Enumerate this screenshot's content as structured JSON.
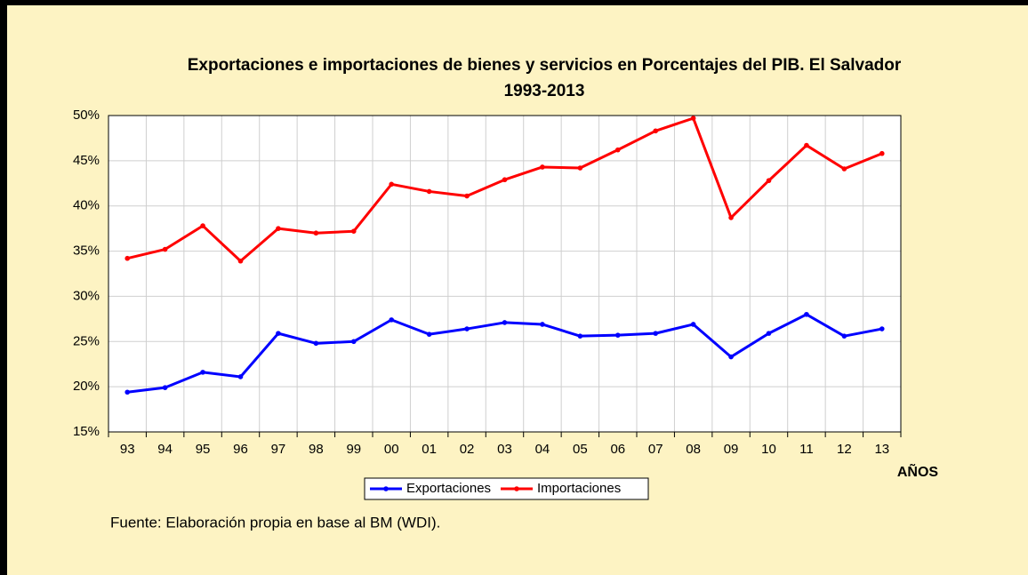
{
  "chart_data": {
    "type": "line",
    "title": [
      "Exportaciones e importaciones de bienes y servicios en Porcentajes del PIB. El Salvador",
      "1993-2013"
    ],
    "x_label": "AÑOS",
    "source": "Fuente: Elaboración propia en base al BM (WDI).",
    "categories": [
      "93",
      "94",
      "95",
      "96",
      "97",
      "98",
      "99",
      "00",
      "01",
      "02",
      "03",
      "04",
      "05",
      "06",
      "07",
      "08",
      "09",
      "10",
      "11",
      "12",
      "13"
    ],
    "series": [
      {
        "name": "Exportaciones",
        "color": "#0000ff",
        "values": [
          19.4,
          19.9,
          21.6,
          21.1,
          25.9,
          24.8,
          25.0,
          27.4,
          25.8,
          26.4,
          27.1,
          26.9,
          25.6,
          25.7,
          25.9,
          26.9,
          23.3,
          25.9,
          28.0,
          25.6,
          26.4
        ]
      },
      {
        "name": "Importaciones",
        "color": "#ff0000",
        "values": [
          34.2,
          35.2,
          37.8,
          33.9,
          37.5,
          37.0,
          37.2,
          42.4,
          41.6,
          41.1,
          42.9,
          44.3,
          44.2,
          46.2,
          48.3,
          49.7,
          38.7,
          42.8,
          46.7,
          44.1,
          45.8
        ]
      }
    ],
    "ylim": [
      15,
      50
    ],
    "yticks": [
      {
        "value": 15,
        "label": "15%"
      },
      {
        "value": 20,
        "label": "20%"
      },
      {
        "value": 25,
        "label": "25%"
      },
      {
        "value": 30,
        "label": "30%"
      },
      {
        "value": 35,
        "label": "35%"
      },
      {
        "value": 40,
        "label": "40%"
      },
      {
        "value": 45,
        "label": "45%"
      },
      {
        "value": 50,
        "label": "50%"
      }
    ],
    "grid": true,
    "legend": "bottom"
  }
}
